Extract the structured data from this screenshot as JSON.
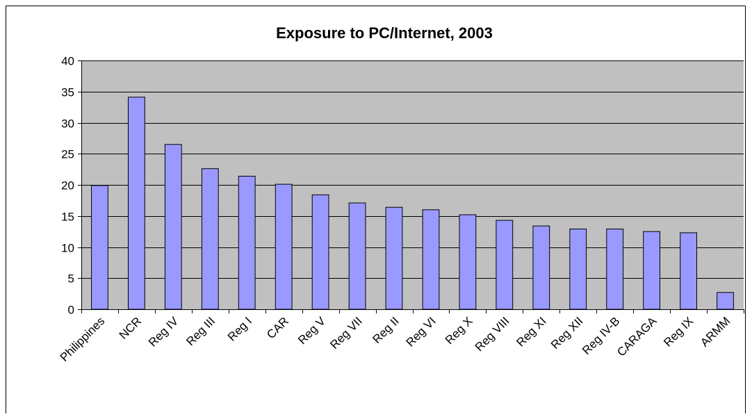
{
  "chart_data": {
    "type": "bar",
    "title": "Exposure to PC/Internet, 2003",
    "xlabel": "",
    "ylabel": "",
    "ylim": [
      0,
      40
    ],
    "y_ticks": [
      "0",
      "5",
      "10",
      "15",
      "20",
      "25",
      "30",
      "35",
      "40"
    ],
    "categories": [
      "Philippines",
      "NCR",
      "Reg IV",
      "Reg III",
      "Reg I",
      "CAR",
      "Reg V",
      "Reg VII",
      "Reg II",
      "Reg VI",
      "Reg X",
      "Reg VIII",
      "Reg XI",
      "Reg XII",
      "Reg IV-B",
      "CARAGA",
      "Reg IX",
      "ARMM"
    ],
    "values": [
      19.9,
      34.1,
      26.5,
      22.6,
      21.4,
      20.1,
      18.4,
      17.1,
      16.4,
      16.0,
      15.2,
      14.3,
      13.4,
      12.9,
      12.9,
      12.5,
      12.3,
      2.7
    ],
    "grid": true,
    "legend": "none",
    "colors": {
      "plot_background": "#c0c0c0",
      "bar_fill": "#9999ff",
      "bar_stroke": "#000000",
      "gridline": "#000000"
    }
  }
}
